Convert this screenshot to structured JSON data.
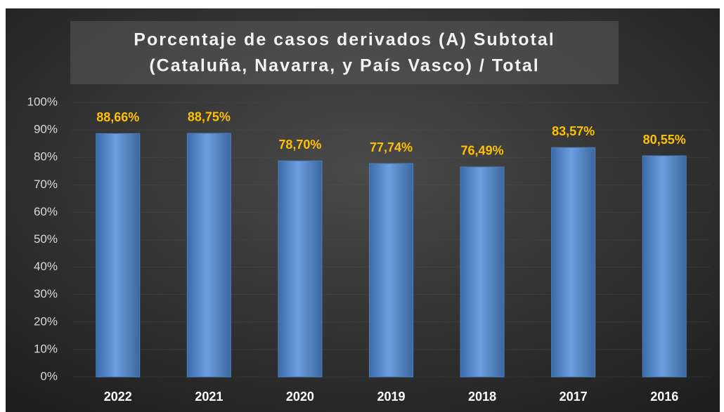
{
  "chart_data": {
    "type": "bar",
    "title": [
      "Porcentaje de casos derivados (A) Subtotal",
      "(Cataluña, Navarra, y País Vasco) / Total"
    ],
    "categories": [
      "2022",
      "2021",
      "2020",
      "2019",
      "2018",
      "2017",
      "2016"
    ],
    "values": [
      88.66,
      88.75,
      78.7,
      77.74,
      76.49,
      83.57,
      80.55
    ],
    "value_labels": [
      "88,66%",
      "88,75%",
      "78,70%",
      "77,74%",
      "76,49%",
      "83,57%",
      "80,55%"
    ],
    "color": "#4f81bd",
    "ylim": [
      0,
      100
    ],
    "yticks": [
      {
        "value": 0,
        "label": "0%"
      },
      {
        "value": 10,
        "label": "10%"
      },
      {
        "value": 20,
        "label": "20%"
      },
      {
        "value": 30,
        "label": "30%"
      },
      {
        "value": 40,
        "label": "40%"
      },
      {
        "value": 50,
        "label": "50%"
      },
      {
        "value": 60,
        "label": "60%"
      },
      {
        "value": 70,
        "label": "70%"
      },
      {
        "value": 80,
        "label": "80%"
      },
      {
        "value": 90,
        "label": "90%"
      },
      {
        "value": 100,
        "label": "100%"
      }
    ],
    "grid": true
  }
}
